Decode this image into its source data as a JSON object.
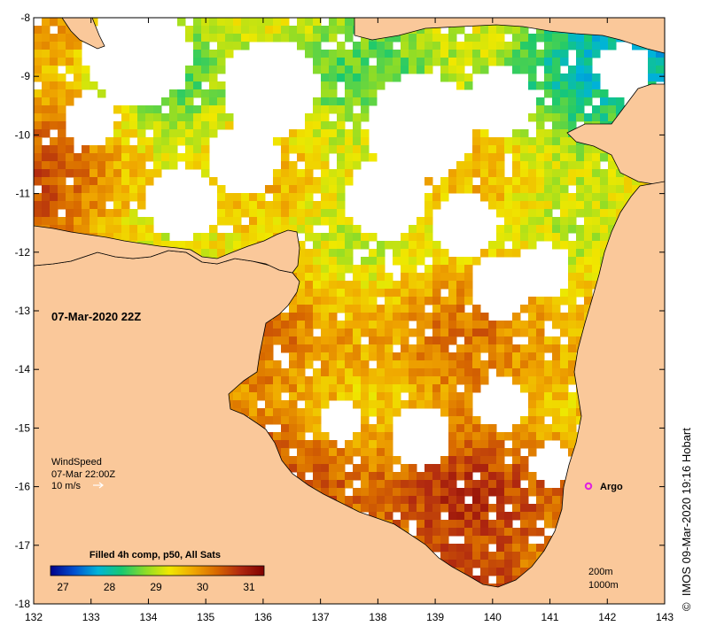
{
  "map": {
    "timestamp": "07-Mar-2020 22Z",
    "colors": {
      "land": "#fac89a",
      "no_data": "#ffffff",
      "coast": "#000000",
      "argo_marker": "#e020e0"
    },
    "x_axis": {
      "ticks": [
        "132",
        "133",
        "134",
        "135",
        "136",
        "137",
        "138",
        "139",
        "140",
        "141",
        "142",
        "143"
      ]
    },
    "y_axis": {
      "ticks": [
        "-8",
        "-9",
        "-10",
        "-11",
        "-12",
        "-13",
        "-14",
        "-15",
        "-16",
        "-17",
        "-18"
      ]
    },
    "wind": {
      "title": "WindSpeed",
      "time": "07-Mar 22:00Z",
      "scale_label": "10 m/s"
    },
    "argo": {
      "label": "Argo"
    },
    "colorbar": {
      "title": "Filled 4h comp, p50, All Sats",
      "ticks": [
        "27",
        "28",
        "29",
        "30",
        "31"
      ],
      "stops": [
        "#00008b",
        "#0050d0",
        "#00b4d8",
        "#18c870",
        "#8cdc28",
        "#f0e800",
        "#f0a800",
        "#d86800",
        "#b02810",
        "#800000"
      ]
    },
    "contours": {
      "label_shallow": "200m",
      "label_deep": "1000m"
    },
    "credit": "IMOS 09-Mar-2020 19:16 Hobart",
    "copyright_symbol": "©"
  }
}
